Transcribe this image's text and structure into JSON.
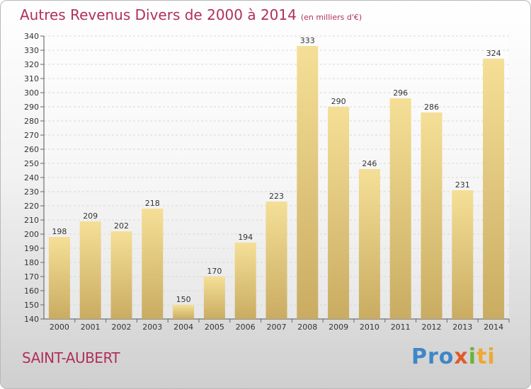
{
  "title": "Autres Revenus Divers de 2000 à 2014",
  "subtitle": "(en milliers d'€)",
  "commune": "SAINT-AUBERT",
  "logo": {
    "p1": "Pro",
    "p2": "x",
    "p3": "i",
    "p4": "ti"
  },
  "colors": {
    "title": "#b0305a",
    "bar_light": "#f5df96",
    "bar_dark": "#c9ac62",
    "grid": "#d8d8d8"
  },
  "chart_data": {
    "type": "bar",
    "categories": [
      "2000",
      "2001",
      "2002",
      "2003",
      "2004",
      "2005",
      "2006",
      "2007",
      "2008",
      "2009",
      "2010",
      "2011",
      "2012",
      "2013",
      "2014"
    ],
    "values": [
      198,
      209,
      202,
      218,
      150,
      170,
      194,
      223,
      333,
      290,
      246,
      296,
      286,
      231,
      324
    ],
    "ylim": [
      140,
      340
    ],
    "ytick_step": 10,
    "grid": true,
    "xlabel": "",
    "ylabel": ""
  }
}
